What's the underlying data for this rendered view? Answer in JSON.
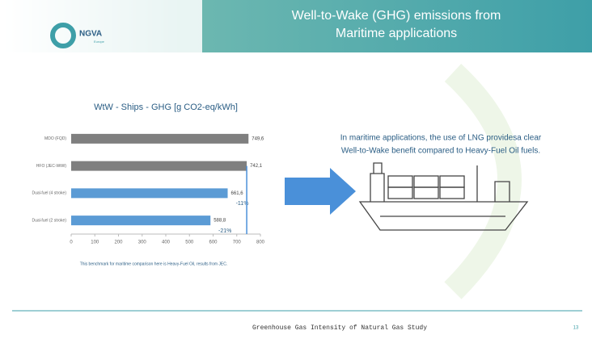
{
  "header": {
    "logo": "NGVA",
    "logo_sub": "Europe",
    "title_lines": [
      "Well-to-Wake (GHG) emissions from",
      "Maritime applications"
    ]
  },
  "chart_data": {
    "type": "bar",
    "orientation": "horizontal",
    "title": "WtW - Ships - GHG [g CO2-eq/kWh]",
    "categories": [
      "MDO (FQD)",
      "HFO (JEC-WtW)",
      "Dual-fuel (4 stroke)",
      "Dual-fuel (2 stroke)"
    ],
    "values": [
      749.6,
      742.1,
      661.6,
      588.8
    ],
    "value_labels": [
      "749,6",
      "742,1",
      "661,6",
      "588,8"
    ],
    "colors": [
      "#7f7f7f",
      "#7f7f7f",
      "#5b9bd5",
      "#5b9bd5"
    ],
    "annotations": [
      null,
      null,
      "-11%",
      "-21%"
    ],
    "xlim": [
      0,
      800
    ],
    "xticks": [
      0,
      100,
      200,
      300,
      400,
      500,
      600,
      700,
      800
    ],
    "note": "This benchmark for maritime comparison here is Heavy-Fuel Oil, results from JEC."
  },
  "message": [
    "In maritime applications, the use of LNG providesa clear",
    "Well-to-Wake benefit compared to Heavy-Fuel Oil fuels."
  ],
  "footer": {
    "text": "Greenhouse Gas Intensity of Natural Gas Study",
    "page": "13"
  }
}
